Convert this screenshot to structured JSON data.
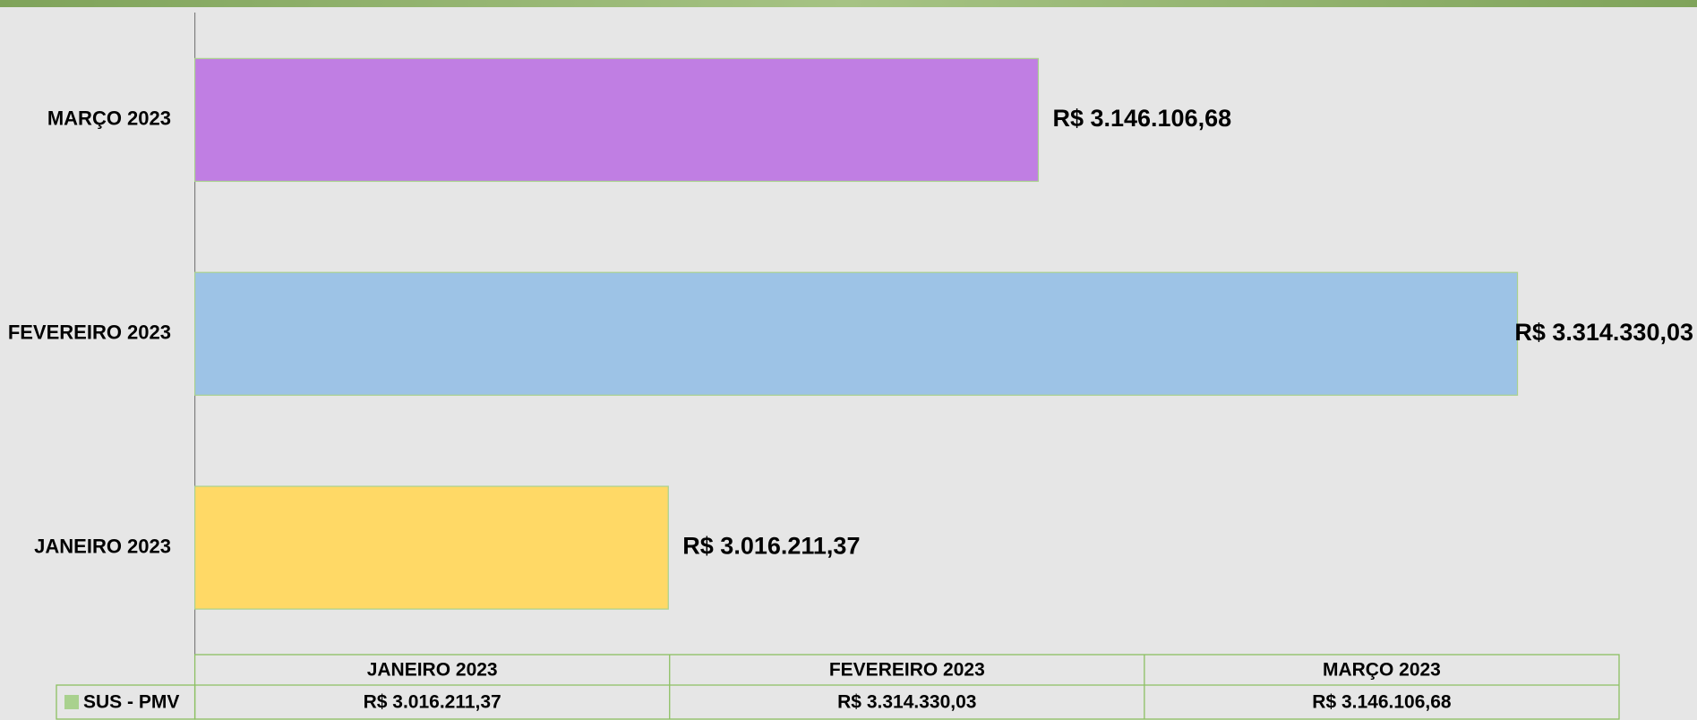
{
  "chart_data": {
    "type": "bar",
    "orientation": "horizontal",
    "categories": [
      "JANEIRO 2023",
      "FEVEREIRO 2023",
      "MARÇO 2023"
    ],
    "series": [
      {
        "name": "SUS - PMV",
        "color": "#a9d18e",
        "bar_colors": [
          "#ffd966",
          "#9dc3e6",
          "#c07ee3"
        ],
        "values": [
          3016211.37,
          3314330.03,
          3146106.68
        ],
        "value_labels": [
          "R$ 3.016.211,37",
          "R$ 3.314.330,03",
          "R$ 3.146.106,68"
        ]
      }
    ],
    "xlim": [
      2850000,
      3350000
    ],
    "data_table": true
  }
}
